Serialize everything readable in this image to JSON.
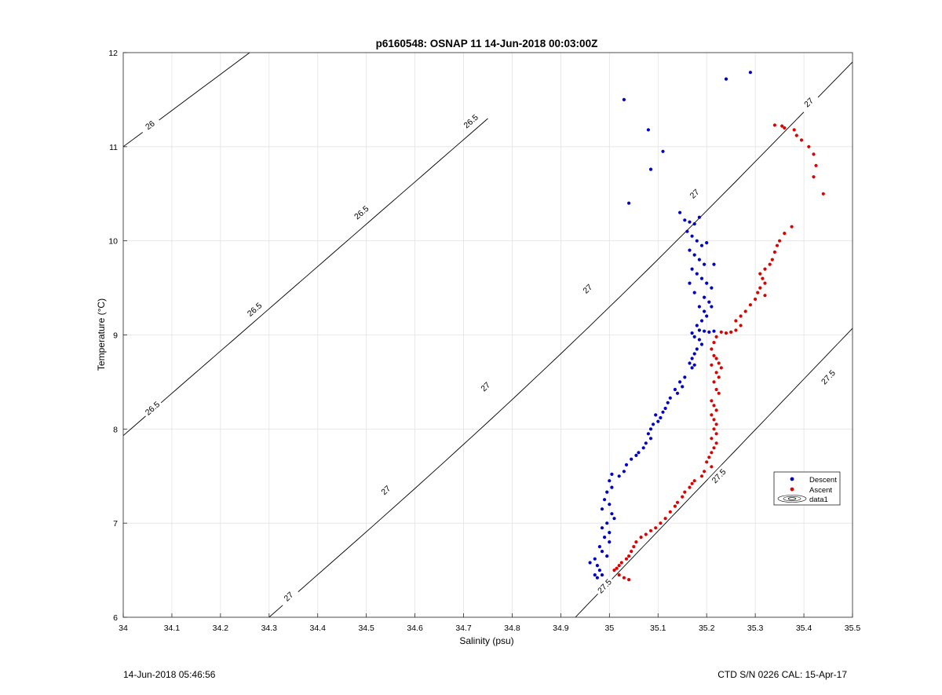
{
  "chart_data": {
    "type": "scatter",
    "title": "p6160548: OSNAP 11 14-Jun-2018 00:03:00Z",
    "xlabel": "Salinity (psu)",
    "ylabel": "Temperature (°C)",
    "xlim": [
      34,
      35.5
    ],
    "ylim": [
      6,
      12
    ],
    "xticks": [
      "34",
      "34.1",
      "34.2",
      "34.3",
      "34.4",
      "34.5",
      "34.6",
      "34.7",
      "34.8",
      "34.9",
      "35",
      "35.1",
      "35.2",
      "35.3",
      "35.4",
      "35.5"
    ],
    "yticks": [
      "6",
      "7",
      "8",
      "9",
      "10",
      "11",
      "12"
    ],
    "grid": true,
    "legend_position": "right",
    "colors": {
      "descent": "#0000cc",
      "ascent": "#e00000",
      "contour": "#000000",
      "grid": "#e3e3e3"
    },
    "contours": [
      {
        "name": "26",
        "labels": [
          {
            "text": "26",
            "x": 34.055,
            "t": 11.23
          }
        ]
      },
      {
        "name": "26.5",
        "labels": [
          {
            "text": "26.5",
            "x": 34.06,
            "t": 8.22
          },
          {
            "text": "26.5",
            "x": 34.27,
            "t": 9.27
          },
          {
            "text": "26.5",
            "x": 34.49,
            "t": 10.3
          },
          {
            "text": "26.5",
            "x": 34.715,
            "t": 11.27
          }
        ]
      },
      {
        "name": "27",
        "labels": [
          {
            "text": "27",
            "x": 34.34,
            "t": 6.22
          },
          {
            "text": "27",
            "x": 34.54,
            "t": 7.35
          },
          {
            "text": "27",
            "x": 34.745,
            "t": 8.45
          },
          {
            "text": "27",
            "x": 34.955,
            "t": 9.49
          },
          {
            "text": "27",
            "x": 35.175,
            "t": 10.5
          },
          {
            "text": "27",
            "x": 35.41,
            "t": 11.47
          }
        ]
      },
      {
        "name": "27.5",
        "labels": [
          {
            "text": "27.5",
            "x": 34.99,
            "t": 6.33
          },
          {
            "text": "27.5",
            "x": 35.225,
            "t": 7.5
          },
          {
            "text": "27.5",
            "x": 35.45,
            "t": 8.55
          }
        ]
      }
    ],
    "series": [
      {
        "name": "Descent",
        "points": [
          [
            35.29,
            11.79
          ],
          [
            35.24,
            11.72
          ],
          [
            35.03,
            11.5
          ],
          [
            35.08,
            11.18
          ],
          [
            35.11,
            10.95
          ],
          [
            35.085,
            10.76
          ],
          [
            35.04,
            10.4
          ],
          [
            35.145,
            10.3
          ],
          [
            35.155,
            10.22
          ],
          [
            35.165,
            10.2
          ],
          [
            35.175,
            10.18
          ],
          [
            35.185,
            10.25
          ],
          [
            35.16,
            10.1
          ],
          [
            35.17,
            10.05
          ],
          [
            35.18,
            10.0
          ],
          [
            35.19,
            9.95
          ],
          [
            35.2,
            9.98
          ],
          [
            35.165,
            9.9
          ],
          [
            35.175,
            9.85
          ],
          [
            35.185,
            9.8
          ],
          [
            35.195,
            9.75
          ],
          [
            35.215,
            9.75
          ],
          [
            35.17,
            9.7
          ],
          [
            35.18,
            9.65
          ],
          [
            35.19,
            9.6
          ],
          [
            35.2,
            9.55
          ],
          [
            35.21,
            9.5
          ],
          [
            35.165,
            9.55
          ],
          [
            35.175,
            9.45
          ],
          [
            35.195,
            9.4
          ],
          [
            35.205,
            9.35
          ],
          [
            35.21,
            9.3
          ],
          [
            35.185,
            9.3
          ],
          [
            35.195,
            9.25
          ],
          [
            35.2,
            9.2
          ],
          [
            35.19,
            9.15
          ],
          [
            35.18,
            9.1
          ],
          [
            35.185,
            9.05
          ],
          [
            35.195,
            9.04
          ],
          [
            35.205,
            9.03
          ],
          [
            35.215,
            9.04
          ],
          [
            35.17,
            9.02
          ],
          [
            35.175,
            8.98
          ],
          [
            35.185,
            8.95
          ],
          [
            35.19,
            8.9
          ],
          [
            35.18,
            8.85
          ],
          [
            35.175,
            8.8
          ],
          [
            35.17,
            8.75
          ],
          [
            35.165,
            8.7
          ],
          [
            35.17,
            8.65
          ],
          [
            35.175,
            8.68
          ],
          [
            35.155,
            8.55
          ],
          [
            35.145,
            8.5
          ],
          [
            35.15,
            8.45
          ],
          [
            35.135,
            8.42
          ],
          [
            35.14,
            8.38
          ],
          [
            35.125,
            8.33
          ],
          [
            35.12,
            8.28
          ],
          [
            35.115,
            8.22
          ],
          [
            35.11,
            8.18
          ],
          [
            35.105,
            8.12
          ],
          [
            35.1,
            8.08
          ],
          [
            35.095,
            8.15
          ],
          [
            35.09,
            8.05
          ],
          [
            35.085,
            8.0
          ],
          [
            35.08,
            7.95
          ],
          [
            35.085,
            7.9
          ],
          [
            35.075,
            7.85
          ],
          [
            35.07,
            7.8
          ],
          [
            35.06,
            7.75
          ],
          [
            35.055,
            7.72
          ],
          [
            35.045,
            7.68
          ],
          [
            35.035,
            7.62
          ],
          [
            35.03,
            7.55
          ],
          [
            35.02,
            7.5
          ],
          [
            35.005,
            7.52
          ],
          [
            35.0,
            7.45
          ],
          [
            35.005,
            7.38
          ],
          [
            34.995,
            7.33
          ],
          [
            34.99,
            7.25
          ],
          [
            35.0,
            7.2
          ],
          [
            34.985,
            7.15
          ],
          [
            35.005,
            7.1
          ],
          [
            35.01,
            7.05
          ],
          [
            34.995,
            7.0
          ],
          [
            34.985,
            6.95
          ],
          [
            35.0,
            6.9
          ],
          [
            34.99,
            6.85
          ],
          [
            35.0,
            6.8
          ],
          [
            34.98,
            6.75
          ],
          [
            34.985,
            6.7
          ],
          [
            34.995,
            6.65
          ],
          [
            34.97,
            6.62
          ],
          [
            34.96,
            6.58
          ],
          [
            34.975,
            6.55
          ],
          [
            34.98,
            6.5
          ],
          [
            34.97,
            6.45
          ],
          [
            34.975,
            6.42
          ],
          [
            34.985,
            6.45
          ]
        ]
      },
      {
        "name": "Ascent",
        "points": [
          [
            35.34,
            11.23
          ],
          [
            35.355,
            11.22
          ],
          [
            35.36,
            11.2
          ],
          [
            35.38,
            11.18
          ],
          [
            35.385,
            11.12
          ],
          [
            35.395,
            11.07
          ],
          [
            35.41,
            11.0
          ],
          [
            35.42,
            10.92
          ],
          [
            35.425,
            10.8
          ],
          [
            35.42,
            10.68
          ],
          [
            35.44,
            10.5
          ],
          [
            35.375,
            10.15
          ],
          [
            35.36,
            10.08
          ],
          [
            35.35,
            10.0
          ],
          [
            35.345,
            9.95
          ],
          [
            35.34,
            9.88
          ],
          [
            35.335,
            9.8
          ],
          [
            35.33,
            9.75
          ],
          [
            35.32,
            9.7
          ],
          [
            35.31,
            9.65
          ],
          [
            35.315,
            9.6
          ],
          [
            35.32,
            9.55
          ],
          [
            35.31,
            9.5
          ],
          [
            35.305,
            9.45
          ],
          [
            35.32,
            9.42
          ],
          [
            35.3,
            9.38
          ],
          [
            35.29,
            9.32
          ],
          [
            35.28,
            9.25
          ],
          [
            35.27,
            9.2
          ],
          [
            35.26,
            9.15
          ],
          [
            35.27,
            9.1
          ],
          [
            35.26,
            9.05
          ],
          [
            35.25,
            9.03
          ],
          [
            35.24,
            9.02
          ],
          [
            35.23,
            9.03
          ],
          [
            35.22,
            8.98
          ],
          [
            35.215,
            8.92
          ],
          [
            35.21,
            8.85
          ],
          [
            35.215,
            8.78
          ],
          [
            35.22,
            8.75
          ],
          [
            35.225,
            8.7
          ],
          [
            35.21,
            8.68
          ],
          [
            35.23,
            8.65
          ],
          [
            35.22,
            8.6
          ],
          [
            35.225,
            8.55
          ],
          [
            35.215,
            8.5
          ],
          [
            35.22,
            8.42
          ],
          [
            35.225,
            8.38
          ],
          [
            35.21,
            8.3
          ],
          [
            35.215,
            8.25
          ],
          [
            35.22,
            8.2
          ],
          [
            35.21,
            8.15
          ],
          [
            35.215,
            8.1
          ],
          [
            35.22,
            8.05
          ],
          [
            35.215,
            8.0
          ],
          [
            35.22,
            7.95
          ],
          [
            35.21,
            7.9
          ],
          [
            35.22,
            7.85
          ],
          [
            35.215,
            7.8
          ],
          [
            35.21,
            7.75
          ],
          [
            35.205,
            7.7
          ],
          [
            35.2,
            7.65
          ],
          [
            35.21,
            7.6
          ],
          [
            35.195,
            7.55
          ],
          [
            35.19,
            7.5
          ],
          [
            35.175,
            7.45
          ],
          [
            35.17,
            7.42
          ],
          [
            35.165,
            7.38
          ],
          [
            35.155,
            7.33
          ],
          [
            35.15,
            7.28
          ],
          [
            35.14,
            7.22
          ],
          [
            35.135,
            7.18
          ],
          [
            35.125,
            7.12
          ],
          [
            35.115,
            7.05
          ],
          [
            35.105,
            7.0
          ],
          [
            35.095,
            6.95
          ],
          [
            35.085,
            6.92
          ],
          [
            35.075,
            6.88
          ],
          [
            35.065,
            6.85
          ],
          [
            35.055,
            6.8
          ],
          [
            35.05,
            6.75
          ],
          [
            35.045,
            6.7
          ],
          [
            35.04,
            6.65
          ],
          [
            35.035,
            6.62
          ],
          [
            35.025,
            6.58
          ],
          [
            35.02,
            6.55
          ],
          [
            35.015,
            6.52
          ],
          [
            35.01,
            6.5
          ],
          [
            35.02,
            6.45
          ],
          [
            35.03,
            6.42
          ],
          [
            35.04,
            6.4
          ]
        ]
      }
    ],
    "legend": [
      "Descent",
      "Ascent",
      "data1"
    ]
  },
  "footer": {
    "left": "14-Jun-2018 05:46:56",
    "right": "CTD S/N 0226  CAL: 15-Apr-17"
  }
}
